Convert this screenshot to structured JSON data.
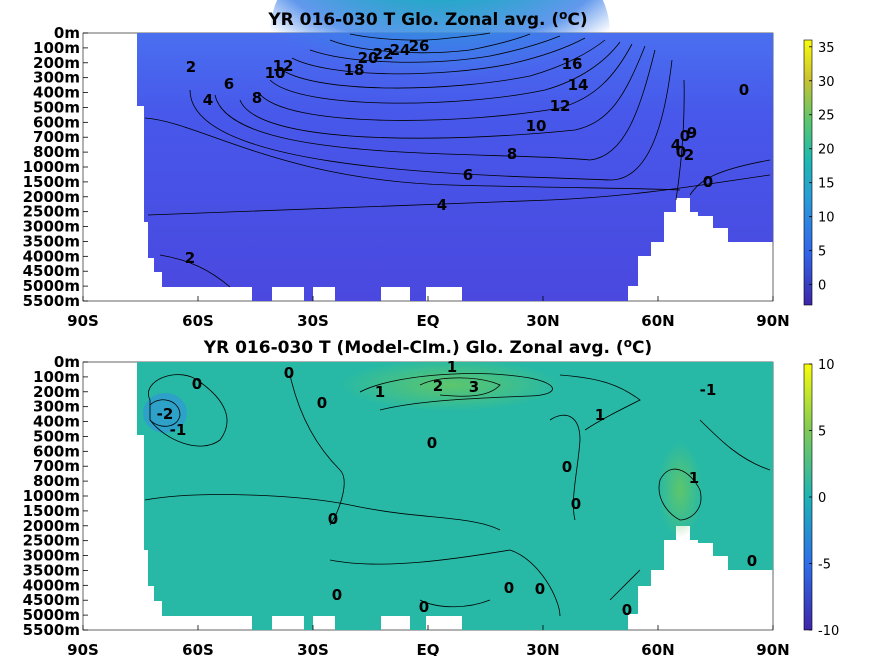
{
  "chart_data": [
    {
      "type": "heatmap",
      "title": "YR 016-030 T Glo. Zonal avg. (",
      "title_sup": "o",
      "title_end": "C)",
      "x_ticks": [
        "90S",
        "60S",
        "30S",
        "EQ",
        "30N",
        "60N",
        "90N"
      ],
      "y_ticks": [
        "0m",
        "100m",
        "200m",
        "300m",
        "400m",
        "500m",
        "600m",
        "700m",
        "800m",
        "1000m",
        "1500m",
        "2000m",
        "2500m",
        "3000m",
        "3500m",
        "4000m",
        "4500m",
        "5000m",
        "5500m"
      ],
      "colorbar": {
        "ticks": [
          "35",
          "30",
          "25",
          "20",
          "15",
          "10",
          "5",
          "0"
        ],
        "range": [
          -3,
          36
        ]
      },
      "contour_labels": [
        "26",
        "24",
        "22",
        "20",
        "18",
        "16",
        "14",
        "12",
        "12",
        "10",
        "10",
        "8",
        "8",
        "6",
        "6",
        "4",
        "4",
        "2",
        "2",
        "0",
        "0",
        "0",
        "0",
        "2",
        "4",
        "9"
      ],
      "colors": {
        "low": "#3d2fb5",
        "mid": "#3a7ee8",
        "high": "#f3d32a"
      }
    },
    {
      "type": "heatmap",
      "title": "YR 016-030 T (Model-Clm.) Glo. Zonal avg. (",
      "title_sup": "o",
      "title_end": "C)",
      "x_ticks": [
        "90S",
        "60S",
        "30S",
        "EQ",
        "30N",
        "60N",
        "90N"
      ],
      "y_ticks": [
        "0m",
        "100m",
        "200m",
        "300m",
        "400m",
        "500m",
        "600m",
        "700m",
        "800m",
        "1000m",
        "1500m",
        "2000m",
        "2500m",
        "3000m",
        "3500m",
        "4000m",
        "4500m",
        "5000m",
        "5500m"
      ],
      "colorbar": {
        "ticks": [
          "10",
          "5",
          "0",
          "-5",
          "-10"
        ],
        "range": [
          -10,
          10
        ]
      },
      "contour_labels": [
        "1",
        "2",
        "3",
        "1",
        "0",
        "0",
        "0",
        "0",
        "0",
        "0",
        "0",
        "0",
        "0",
        "0",
        "0",
        "0",
        "0",
        "1",
        "1",
        "-1",
        "-1",
        "-2"
      ],
      "colors": {
        "low": "#3d2fb5",
        "mid": "#20b6a9",
        "high": "#f3d32a"
      }
    }
  ]
}
